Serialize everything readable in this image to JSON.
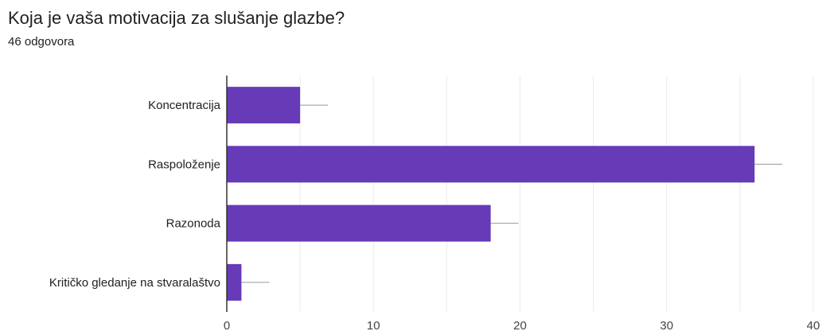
{
  "question": {
    "title": "Koja je vaša motivacija za slušanje glazbe?",
    "responses": "46 odgovora"
  },
  "colors": {
    "bar": "#673ab7",
    "grid": "#ececec",
    "axis": "#333333",
    "error_bar": "#999999",
    "text": "#202124"
  },
  "chart_data": {
    "type": "bar",
    "orientation": "horizontal",
    "title": "Koja je vaša motivacija za slušanje glazbe?",
    "subtitle": "46 odgovora",
    "categories": [
      "Koncentracija",
      "Raspoloženje",
      "Razonoda",
      "Kritičko gledanje na stvaralaštvo"
    ],
    "values": [
      5,
      36,
      18,
      1
    ],
    "xlim": [
      0,
      40
    ],
    "xticks": [
      0,
      10,
      20,
      30,
      40
    ],
    "grid": true,
    "legend": "none"
  }
}
